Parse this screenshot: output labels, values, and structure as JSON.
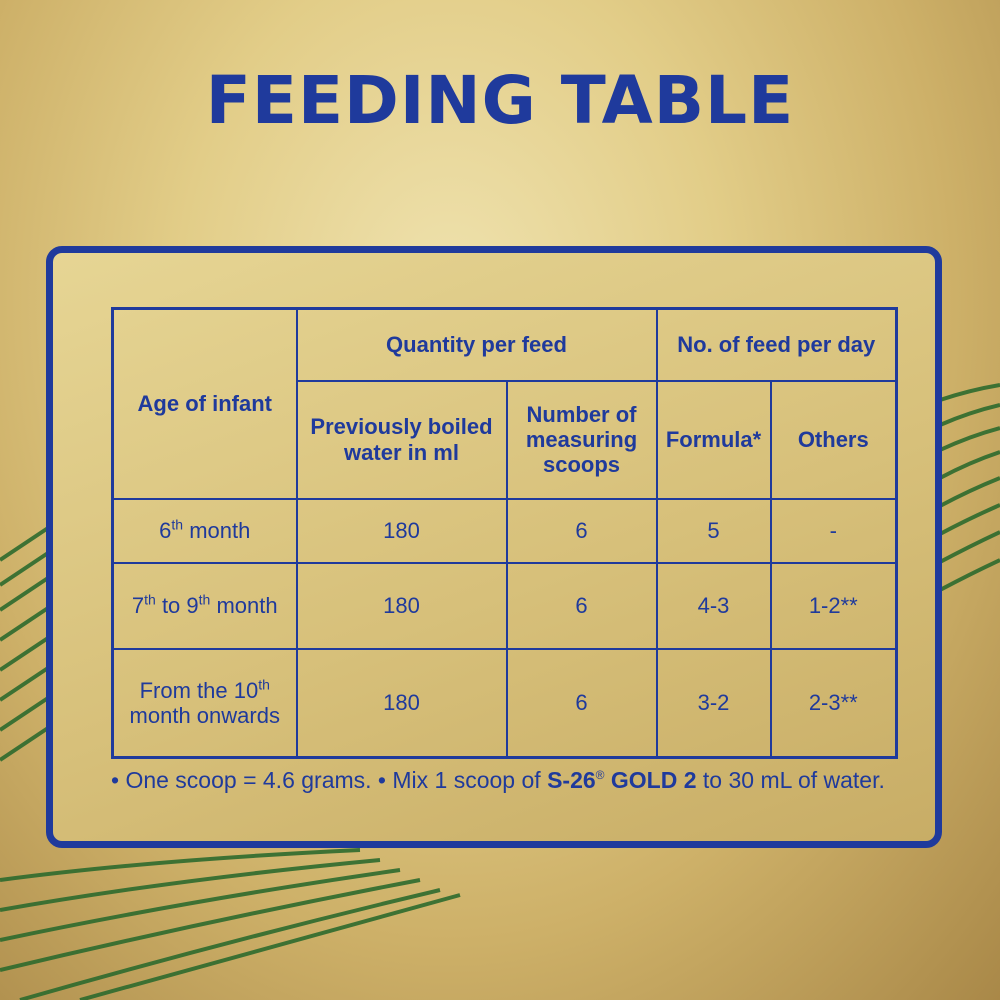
{
  "title": "FEEDING TABLE",
  "table": {
    "header": {
      "age": "Age of infant",
      "quantity_group": "Quantity per feed",
      "feeds_group": "No. of feed per day",
      "water": "Previously boiled water in ml",
      "scoops": "Number of measuring scoops",
      "formula": "Formula*",
      "others": "Others"
    },
    "rows": [
      {
        "age_prefix": "6",
        "age_sup1": "th",
        "age_mid": " month",
        "age_sup2": "",
        "age_suffix": "",
        "water": "180",
        "scoops": "6",
        "formula": "5",
        "others": "-"
      },
      {
        "age_prefix": "7",
        "age_sup1": "th",
        "age_mid": " to 9",
        "age_sup2": "th",
        "age_suffix": " month",
        "water": "180",
        "scoops": "6",
        "formula": "4-3",
        "others": "1-2**"
      },
      {
        "age_prefix": "From the 10",
        "age_sup1": "th",
        "age_mid": " month onwards",
        "age_sup2": "",
        "age_suffix": "",
        "water": "180",
        "scoops": "6",
        "formula": "3-2",
        "others": "2-3**"
      }
    ]
  },
  "note": {
    "part1": "• One scoop = 4.6 grams. • Mix 1 scoop of ",
    "brand": "S-26",
    "registered": "®",
    "product": " GOLD 2",
    "part2": " to 30 mL of water."
  },
  "colors": {
    "accent_blue": "#1f3a9c",
    "background_gold": "#e2cd88",
    "stripe_green": "#2e6b2e"
  }
}
